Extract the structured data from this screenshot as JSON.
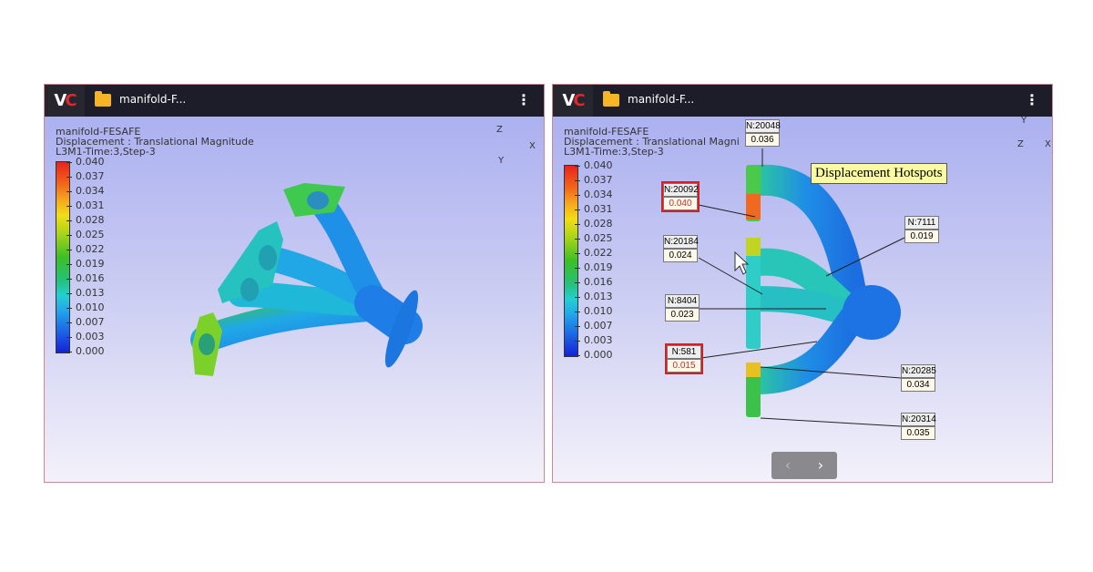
{
  "panels": [
    {
      "logo": "VC",
      "file_name": "manifold-F...",
      "menu_icon": "more-vertical-icon",
      "info": [
        "manifold-FESAFE",
        "Displacement : Translational Magnitude",
        "L3M1-Time:3,Step-3"
      ],
      "axes": {
        "z": "Z",
        "x": "X",
        "y": "Y"
      }
    },
    {
      "logo": "VC",
      "file_name": "manifold-F...",
      "menu_icon": "more-vertical-icon",
      "info": [
        "manifold-FESAFE",
        "Displacement : Translational Magni",
        "L3M1-Time:3,Step-3"
      ],
      "axes": {
        "z": "Z",
        "x": "X",
        "y": "Y"
      },
      "annotation_title": "Displacement Hotspots",
      "probes": [
        {
          "node": "N:20048",
          "value": "0.036",
          "highlight": false
        },
        {
          "node": "N:20092",
          "value": "0.040",
          "highlight": true
        },
        {
          "node": "N:20184",
          "value": "0.024",
          "highlight": false
        },
        {
          "node": "N:8404",
          "value": "0.023",
          "highlight": false
        },
        {
          "node": "N:581",
          "value": "0.015",
          "highlight": true
        },
        {
          "node": "N:7111",
          "value": "0.019",
          "highlight": false
        },
        {
          "node": "N:20285",
          "value": "0.034",
          "highlight": false
        },
        {
          "node": "N:20314",
          "value": "0.035",
          "highlight": false
        }
      ],
      "nav": {
        "prev": "‹",
        "next": "›"
      }
    }
  ],
  "legend": [
    "0.040",
    "0.037",
    "0.034",
    "0.031",
    "0.028",
    "0.025",
    "0.022",
    "0.019",
    "0.016",
    "0.013",
    "0.010",
    "0.007",
    "0.003",
    "0.000"
  ],
  "colors": {
    "header": "#1d1d29",
    "accent": "#e0282d",
    "highlight_border": "#d42020"
  }
}
